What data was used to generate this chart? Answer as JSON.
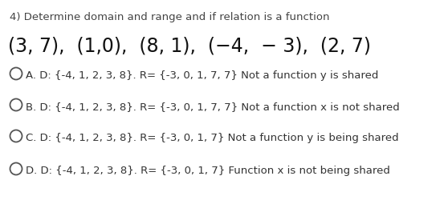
{
  "background_color": "#ffffff",
  "title_text": "4) Determine domain and range and if relation is a function",
  "title_fontsize": 9.5,
  "title_color": "#444444",
  "relation_text": "(3, 7),  (1,0),  (8, 1),  (−4,  − 3),  (2, 7)",
  "relation_fontsize": 17,
  "relation_color": "#111111",
  "options": [
    {
      "text": "A. D: {-4, 1, 2, 3, 8}. R= {-3, 0, 1, 7, 7} Not a function y is shared"
    },
    {
      "text": "B. D: {-4, 1, 2, 3, 8}. R= {-3, 0, 1, 7, 7} Not a function x is not shared"
    },
    {
      "text": "C. D: {-4, 1, 2, 3, 8}. R= {-3, 0, 1, 7} Not a function y is being shared"
    },
    {
      "text": "D. D: {-4, 1, 2, 3, 8}. R= {-3, 0, 1, 7} Function x is not being shared"
    }
  ],
  "option_fontsize": 9.5,
  "option_color": "#333333",
  "circle_color": "#555555",
  "circle_linewidth": 1.3
}
